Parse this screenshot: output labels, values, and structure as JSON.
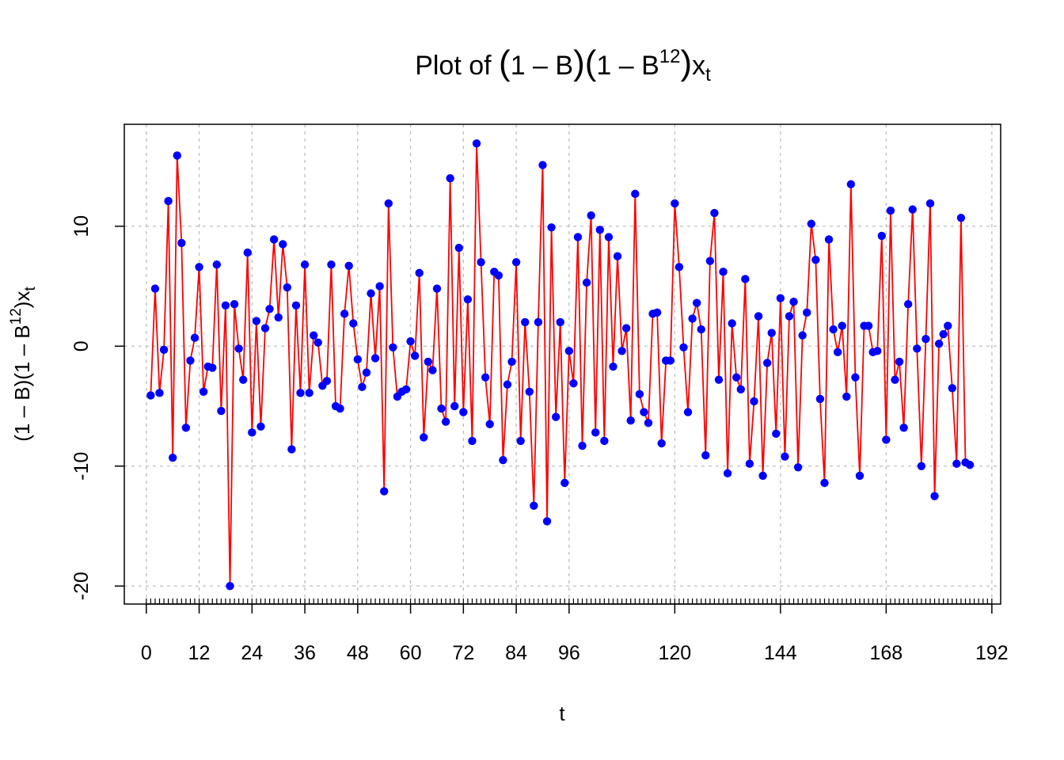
{
  "chart_data": {
    "type": "line",
    "title": {
      "prefix": "Plot of ",
      "open1": "(",
      "body1": "1 – B",
      "close1": ")",
      "open2": "(",
      "body2": "1 – B",
      "sup": "12",
      "close2": ")",
      "var": "x",
      "sub": "t"
    },
    "xlabel": "t",
    "ylabel": {
      "part1": "(1 – B)(1 – B",
      "sup": "12",
      "part2": ")x",
      "sub": "t"
    },
    "xlim": [
      -5,
      194
    ],
    "ylim": [
      -21.5,
      18.5
    ],
    "x_ticks": [
      0,
      12,
      24,
      36,
      48,
      60,
      72,
      84,
      96,
      120,
      144,
      168,
      192
    ],
    "x_tick_labels": [
      "0",
      "12",
      "24",
      "36",
      "48",
      "60",
      "72",
      "84",
      "96",
      "120",
      "144",
      "168",
      "192"
    ],
    "y_ticks": [
      -20,
      -10,
      0,
      10
    ],
    "y_tick_labels": [
      "-20",
      "-10",
      "0",
      "10"
    ],
    "grid": true,
    "colors": {
      "line": "#ff0000",
      "points": "#0000ff",
      "grid": "#bebebe"
    },
    "x_start": 1,
    "values": [
      -4.1,
      4.8,
      -3.9,
      -0.3,
      12.1,
      -9.3,
      15.9,
      8.6,
      -6.8,
      -1.2,
      0.7,
      6.6,
      -3.8,
      -1.7,
      -1.8,
      6.8,
      -5.4,
      3.4,
      -20.0,
      3.5,
      -0.2,
      -2.8,
      7.8,
      -7.2,
      2.1,
      -6.7,
      1.5,
      3.1,
      8.9,
      2.4,
      8.5,
      4.9,
      -8.6,
      3.4,
      -3.9,
      6.8,
      -3.9,
      0.9,
      0.3,
      -3.3,
      -2.9,
      6.8,
      -5.0,
      -5.2,
      2.7,
      6.7,
      1.9,
      -1.1,
      -3.4,
      -2.2,
      4.4,
      -1.0,
      5.0,
      -12.1,
      11.9,
      -0.1,
      -4.2,
      -3.8,
      -3.6,
      0.4,
      -0.8,
      6.1,
      -7.6,
      -1.3,
      -2.0,
      4.8,
      -5.2,
      -6.3,
      14.0,
      -5.0,
      8.2,
      -5.5,
      3.9,
      -7.9,
      16.9,
      7.0,
      -2.6,
      -6.5,
      6.2,
      5.9,
      -9.5,
      -3.2,
      -1.3,
      7.0,
      -7.9,
      2.0,
      -3.8,
      -13.3,
      2.0,
      15.1,
      -14.6,
      9.9,
      -5.9,
      2.0,
      -11.4,
      -0.4,
      -3.1,
      9.1,
      -8.3,
      5.3,
      10.9,
      -7.2,
      9.7,
      -7.9,
      9.1,
      -1.7,
      7.5,
      -0.4,
      1.5,
      -6.2,
      12.7,
      -4.0,
      -5.5,
      -6.4,
      2.7,
      2.8,
      -8.1,
      -1.2,
      -1.2,
      11.9,
      6.6,
      -0.1,
      -5.5,
      2.3,
      3.6,
      1.4,
      -9.1,
      7.1,
      11.1,
      -2.8,
      6.2,
      -10.6,
      1.9,
      -2.6,
      -3.6,
      5.6,
      -9.8,
      -4.6,
      2.5,
      -10.8,
      -1.4,
      1.1,
      -7.3,
      4.0,
      -9.2,
      2.5,
      3.7,
      -10.1,
      0.9,
      2.8,
      10.2,
      7.2,
      -4.4,
      -11.4,
      8.9,
      1.4,
      -0.5,
      1.7,
      -4.2,
      13.5,
      -2.6,
      -10.8,
      1.7,
      1.7,
      -0.5,
      -0.4,
      9.2,
      -7.8,
      11.3,
      -2.8,
      -1.3,
      -6.8,
      3.5,
      11.4,
      -0.2,
      -10.0,
      0.6,
      11.9,
      -12.5,
      0.2,
      1.0,
      1.7,
      -3.5,
      -9.8,
      10.7,
      -9.7,
      -9.9
    ]
  }
}
